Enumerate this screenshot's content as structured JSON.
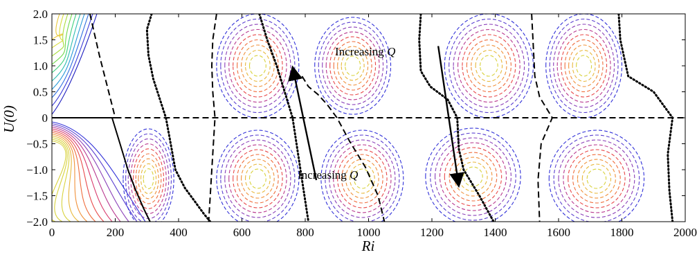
{
  "chart_data": {
    "type": "line",
    "title": "",
    "xlabel": "Ri",
    "ylabel": "U(0)",
    "xlim": [
      0,
      2000
    ],
    "ylim": [
      -2.0,
      2.0
    ],
    "grid": false,
    "legend": "none",
    "x_ticks": [
      0,
      200,
      400,
      600,
      800,
      1000,
      1200,
      1400,
      1600,
      1800,
      2000
    ],
    "x_tick_labels": [
      "0",
      "200",
      "400",
      "600",
      "800",
      "1000",
      "1200",
      "1400",
      "1600",
      "1800",
      "2000"
    ],
    "y_ticks": [
      2.0,
      1.5,
      1.0,
      0.5,
      0,
      -0.5,
      -1.0,
      -1.5,
      -2.0
    ],
    "y_tick_labels": [
      "2.0",
      "1.5",
      "1.0",
      "0.5",
      "0",
      "−0.5",
      "−1.0",
      "−1.5",
      "−2.0"
    ],
    "annotations": [
      {
        "text": "Increasing Q",
        "arrow_from": [
          1220,
          1.38
        ],
        "arrow_to": [
          1285,
          -1.32
        ]
      },
      {
        "text": "Increasing Q",
        "arrow_from": [
          835,
          -1.2
        ],
        "arrow_to": [
          760,
          0.98
        ]
      }
    ],
    "series": [
      {
        "style": "solid",
        "color": "#000000",
        "x": [
          0,
          200
        ],
        "y": [
          0,
          0
        ]
      },
      {
        "style": "dashed",
        "color": "#000000",
        "x": [
          200,
          2000
        ],
        "y": [
          0,
          0
        ]
      },
      {
        "style": "solid",
        "color": "#000000",
        "x": [
          190,
          215,
          240,
          265,
          290,
          310
        ],
        "y": [
          0.0,
          -0.5,
          -1.0,
          -1.4,
          -1.75,
          -2.0
        ]
      },
      {
        "style": "dashed",
        "color": "#000000",
        "x": [
          120,
          150,
          175,
          200
        ],
        "y": [
          2.0,
          1.2,
          0.6,
          0.0
        ]
      },
      {
        "style": "dotted",
        "color": "#000000",
        "x": [
          315,
          300,
          305,
          320,
          360,
          375,
          390,
          420,
          450,
          480,
          500
        ],
        "y": [
          2.0,
          1.7,
          1.2,
          0.75,
          0.0,
          -0.5,
          -1.0,
          -1.35,
          -1.6,
          -1.85,
          -2.0
        ]
      },
      {
        "style": "dashed",
        "color": "#000000",
        "x": [
          520,
          508,
          505,
          508,
          515,
          505,
          495
        ],
        "y": [
          2.0,
          1.5,
          1.0,
          0.5,
          0.0,
          -1.0,
          -2.0
        ]
      },
      {
        "style": "dotted",
        "color": "#000000",
        "x": [
          655,
          680,
          710,
          735,
          760,
          785,
          810
        ],
        "y": [
          2.0,
          1.5,
          1.0,
          0.5,
          0.0,
          -1.0,
          -2.0
        ]
      },
      {
        "style": "dashed",
        "color": "#000000",
        "x": [
          790,
          810,
          840,
          870,
          900,
          940,
          990,
          1030,
          1050
        ],
        "y": [
          0.8,
          0.6,
          0.45,
          0.25,
          0.0,
          -0.45,
          -0.95,
          -1.5,
          -2.0
        ]
      },
      {
        "style": "dotted",
        "color": "#000000",
        "x": [
          1165,
          1160,
          1165,
          1195,
          1250,
          1280,
          1285,
          1300,
          1350,
          1395
        ],
        "y": [
          2.0,
          1.5,
          0.9,
          0.6,
          0.35,
          0.0,
          -0.6,
          -1.0,
          -1.5,
          -2.0
        ]
      },
      {
        "style": "dashed",
        "color": "#000000",
        "x": [
          1515,
          1520,
          1525,
          1540,
          1580,
          1545,
          1535,
          1540
        ],
        "y": [
          2.0,
          1.4,
          0.8,
          0.4,
          0.0,
          -0.5,
          -1.2,
          -2.0
        ]
      },
      {
        "style": "dotted",
        "color": "#000000",
        "x": [
          1790,
          1795,
          1820,
          1900,
          1960,
          1945,
          1950,
          1960
        ],
        "y": [
          2.0,
          1.5,
          0.8,
          0.5,
          0.0,
          -0.7,
          -1.4,
          -2.0
        ]
      },
      {
        "style": "contours",
        "color": "#2b2bd0",
        "note": "solid spectrum-coloured contour families near Ri ~0–180 and blue/yellow dashed contour cells across the domain"
      }
    ]
  }
}
